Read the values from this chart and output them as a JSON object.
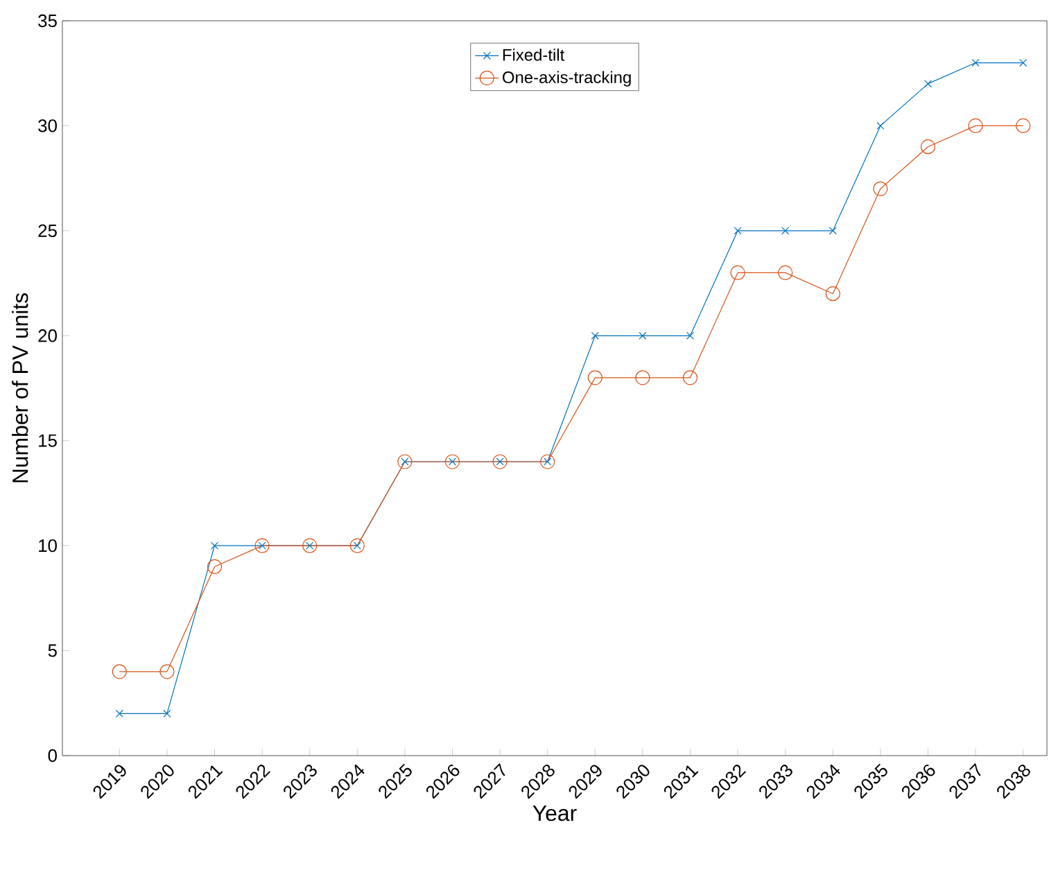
{
  "chart_data": {
    "type": "line",
    "xlabel": "Year",
    "ylabel": "Number of PV units",
    "categories": [
      "2019",
      "2020",
      "2021",
      "2022",
      "2023",
      "2024",
      "2025",
      "2026",
      "2027",
      "2028",
      "2029",
      "2030",
      "2031",
      "2032",
      "2033",
      "2034",
      "2035",
      "2036",
      "2037",
      "2038"
    ],
    "series": [
      {
        "name": "Fixed-tilt",
        "color": "#0072bd",
        "marker": "cross",
        "values": [
          2,
          2,
          10,
          10,
          10,
          10,
          14,
          14,
          14,
          14,
          20,
          20,
          20,
          25,
          25,
          25,
          30,
          32,
          33,
          33
        ]
      },
      {
        "name": "One-axis-tracking",
        "color": "#d95319",
        "marker": "circle",
        "values": [
          4,
          4,
          9,
          10,
          10,
          10,
          14,
          14,
          14,
          14,
          18,
          18,
          18,
          23,
          23,
          22,
          27,
          29,
          30,
          30
        ]
      }
    ],
    "ylim": [
      0,
      35
    ],
    "yticks": [
      0,
      5,
      10,
      15,
      20,
      25,
      30,
      35
    ],
    "grid": false,
    "legend": "top",
    "line_style": "solid"
  }
}
